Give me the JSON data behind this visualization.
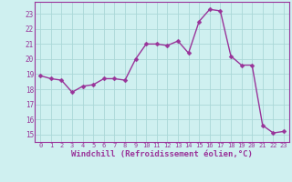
{
  "x": [
    0,
    1,
    2,
    3,
    4,
    5,
    6,
    7,
    8,
    9,
    10,
    11,
    12,
    13,
    14,
    15,
    16,
    17,
    18,
    19,
    20,
    21,
    22,
    23
  ],
  "y": [
    18.9,
    18.7,
    18.6,
    17.8,
    18.2,
    18.3,
    18.7,
    18.7,
    18.6,
    20.0,
    21.0,
    21.0,
    20.9,
    21.2,
    20.4,
    22.5,
    23.3,
    23.2,
    20.2,
    19.6,
    19.6,
    15.6,
    15.1,
    15.2
  ],
  "line_color": "#993399",
  "marker": "D",
  "marker_size": 2.5,
  "linewidth": 1.0,
  "bg_color": "#cff0f0",
  "grid_color": "#aad8d8",
  "tick_color": "#993399",
  "xlabel": "Windchill (Refroidissement éolien,°C)",
  "xlabel_fontsize": 6.5,
  "ylabel_ticks": [
    15,
    16,
    17,
    18,
    19,
    20,
    21,
    22,
    23
  ],
  "xlim": [
    -0.5,
    23.5
  ],
  "ylim": [
    14.5,
    23.8
  ]
}
